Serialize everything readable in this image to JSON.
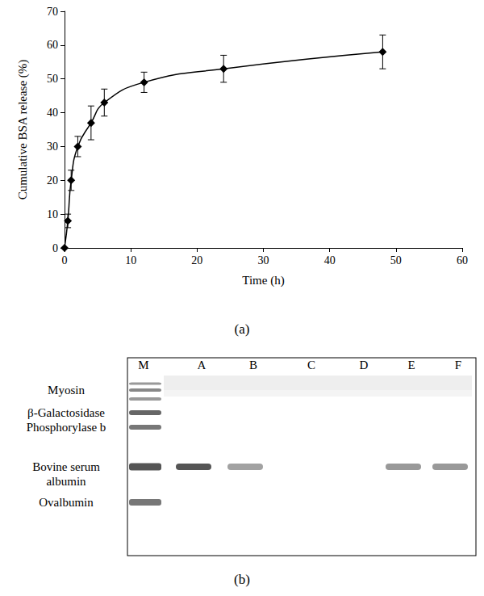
{
  "chart_data": {
    "type": "line",
    "x_label": "Time (h)",
    "y_label": "Cumulative BSA release (%)",
    "x": [
      0,
      0.5,
      1,
      2,
      4,
      6,
      12,
      24,
      48
    ],
    "values": [
      0,
      8,
      20,
      30,
      37,
      43,
      49,
      53,
      58
    ],
    "errors": [
      0,
      2,
      3,
      3,
      5,
      4,
      3,
      4,
      5
    ],
    "color": "#000000",
    "marker": "diamond",
    "line_style": "solid",
    "grid": false,
    "xlim": [
      0,
      60
    ],
    "xticks": [
      0,
      10,
      20,
      30,
      40,
      50,
      60
    ],
    "ylim": [
      0,
      70
    ],
    "yticks": [
      0,
      10,
      20,
      30,
      40,
      50,
      60,
      70
    ]
  },
  "panel_labels": [
    "(a)",
    "(b)"
  ],
  "gel": {
    "lanes": [
      "M",
      "A",
      "B",
      "C",
      "D",
      "E",
      "F"
    ],
    "marker_labels": [
      [
        "Myosin"
      ],
      [
        "β-Galactosidase"
      ],
      [
        "Phosphorylase b"
      ],
      [
        "Bovine serum",
        "albumin"
      ],
      [
        "Ovalbumin"
      ]
    ],
    "bsa_band_intensity": [
      1.0,
      0.55,
      0,
      0,
      0.6,
      0.6
    ]
  }
}
